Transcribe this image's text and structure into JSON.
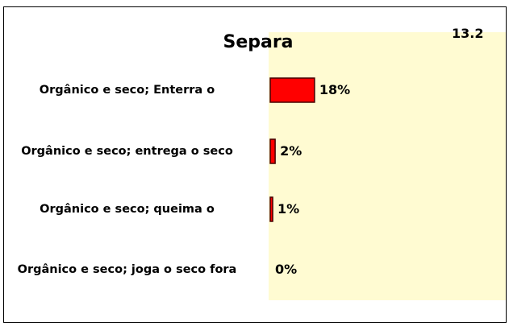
{
  "chart_data": {
    "type": "bar",
    "orientation": "horizontal",
    "title": "Separa",
    "annotation": "13.2",
    "categories": [
      "Orgânico e seco; Enterra o",
      "Orgânico e seco; entrega o seco",
      "Orgânico e seco; queima o",
      "Orgânico e seco; joga o seco fora"
    ],
    "values": [
      18,
      2,
      1,
      0
    ],
    "value_labels": [
      "18%",
      "2%",
      "1%",
      "0%"
    ],
    "color": "#ff0000"
  }
}
